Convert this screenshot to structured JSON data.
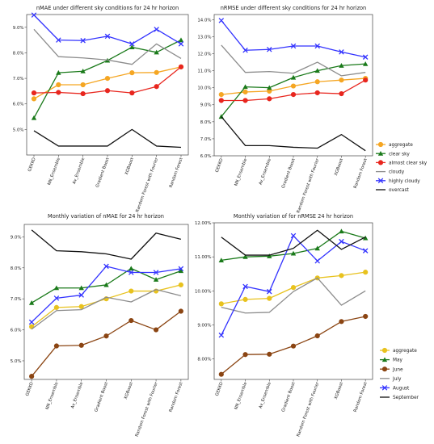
{
  "chart_data": [
    {
      "type": "line",
      "title": "nMAE under different sky conditions for 24 hr horizon",
      "categories": [
        "GEKKO",
        "NN_Ensemble",
        "Av_Ensemble",
        "Gradient Boost",
        "XGBoost",
        "Random Forest with Fourier",
        "Random Forest"
      ],
      "ylim": [
        4.0,
        9.5
      ],
      "yticks": [
        5.0,
        6.0,
        7.0,
        8.0,
        9.0
      ],
      "ytick_labels": [
        "5.0%",
        "6.0%",
        "7.0%",
        "8.0%",
        "9.0%"
      ],
      "legend_position": "right",
      "series": [
        {
          "name": "aggregate",
          "color": "#f5a623",
          "marker": "circle",
          "values": [
            6.2,
            6.75,
            6.75,
            7.0,
            7.22,
            7.23,
            7.45
          ]
        },
        {
          "name": "clear sky",
          "color": "#1a7a1a",
          "marker": "triangle",
          "values": [
            5.45,
            7.22,
            7.28,
            7.7,
            8.22,
            8.02,
            8.5
          ]
        },
        {
          "name": "almost clear sky",
          "color": "#e8261e",
          "marker": "circle",
          "values": [
            6.43,
            6.45,
            6.4,
            6.52,
            6.43,
            6.68,
            7.45
          ]
        },
        {
          "name": "cloudy",
          "color": "#8c8c8c",
          "marker": "none",
          "values": [
            8.92,
            7.85,
            7.8,
            7.72,
            7.55,
            8.35,
            7.78
          ]
        },
        {
          "name": "highly cloudy",
          "color": "#3333ff",
          "marker": "x",
          "values": [
            9.48,
            8.5,
            8.48,
            8.65,
            8.35,
            8.92,
            8.35
          ]
        },
        {
          "name": "overcast",
          "color": "#111111",
          "marker": "none",
          "values": [
            4.95,
            4.35,
            4.35,
            4.35,
            5.0,
            4.35,
            4.3
          ]
        }
      ]
    },
    {
      "type": "line",
      "title": "nRMSE under different sky conditions for 24 hr horizon",
      "categories": [
        "GEKKO",
        "NN_Ensemble",
        "Av_Ensemble",
        "Gradient Boost",
        "Random Forest with Fourier",
        "XGBoost",
        "Random Forest"
      ],
      "ylim": [
        6.0,
        14.3
      ],
      "yticks": [
        6.0,
        7.0,
        8.0,
        9.0,
        10.0,
        11.0,
        12.0,
        13.0,
        14.0
      ],
      "ytick_labels": [
        "6.0%",
        "7.0%",
        "8.0%",
        "9.0%",
        "10.0%",
        "11.0%",
        "12.0%",
        "13.0%",
        "14.0%"
      ],
      "legend_position": "right",
      "series": [
        {
          "name": "aggregate",
          "color": "#f5a623",
          "marker": "circle",
          "values": [
            9.6,
            9.75,
            9.8,
            10.1,
            10.35,
            10.45,
            10.55
          ]
        },
        {
          "name": "clear sky",
          "color": "#1a7a1a",
          "marker": "triangle",
          "values": [
            8.3,
            10.05,
            10.0,
            10.6,
            11.0,
            11.3,
            11.4
          ]
        },
        {
          "name": "almost clear sky",
          "color": "#e8261e",
          "marker": "circle",
          "values": [
            9.25,
            9.25,
            9.35,
            9.6,
            9.7,
            9.65,
            10.45
          ]
        },
        {
          "name": "cloudy",
          "color": "#8c8c8c",
          "marker": "none",
          "values": [
            12.5,
            10.9,
            10.95,
            10.85,
            11.5,
            10.7,
            10.9
          ]
        },
        {
          "name": "highly cloudy",
          "color": "#3333ff",
          "marker": "x",
          "values": [
            13.95,
            12.2,
            12.25,
            12.45,
            12.45,
            12.1,
            11.8
          ]
        },
        {
          "name": "overcast",
          "color": "#111111",
          "marker": "none",
          "values": [
            8.3,
            6.6,
            6.6,
            6.5,
            6.45,
            7.25,
            6.3
          ]
        }
      ]
    },
    {
      "type": "line",
      "title": "Monthly variation of nMAE for 24 hr horizon",
      "categories": [
        "GEKKO",
        "NN_Ensemble",
        "Av_Ensemble",
        "Gradient Boost",
        "XGBoost",
        "Random Forest with Fourier",
        "Random Forest"
      ],
      "ylim": [
        4.4,
        9.4
      ],
      "yticks": [
        5.0,
        6.0,
        7.0,
        8.0,
        9.0
      ],
      "ytick_labels": [
        "5.0%",
        "6.0%",
        "7.0%",
        "8.0%",
        "9.0%"
      ],
      "legend_position": "right",
      "series": [
        {
          "name": "aggregate",
          "color": "#e8c21e",
          "marker": "circle",
          "values": [
            6.1,
            6.72,
            6.75,
            7.0,
            7.25,
            7.25,
            7.45
          ]
        },
        {
          "name": "May",
          "color": "#1a7a1a",
          "marker": "triangle",
          "values": [
            6.87,
            7.35,
            7.35,
            7.45,
            7.98,
            7.62,
            7.9
          ]
        },
        {
          "name": "June",
          "color": "#8b4513",
          "marker": "circle",
          "values": [
            4.5,
            5.48,
            5.5,
            5.8,
            6.3,
            6.0,
            6.6
          ]
        },
        {
          "name": "July",
          "color": "#8c8c8c",
          "marker": "none",
          "values": [
            6.02,
            6.62,
            6.65,
            7.05,
            6.9,
            7.3,
            7.1
          ]
        },
        {
          "name": "August",
          "color": "#3333ff",
          "marker": "x",
          "values": [
            6.25,
            7.02,
            7.12,
            8.05,
            7.85,
            7.85,
            7.97
          ]
        },
        {
          "name": "September",
          "color": "#111111",
          "marker": "none",
          "values": [
            9.22,
            8.55,
            8.52,
            8.45,
            8.28,
            9.12,
            8.92
          ]
        }
      ]
    },
    {
      "type": "line",
      "title": "Monthly variation of for nRMSE 24 hr horizon",
      "categories": [
        "GEKKO",
        "NN_Ensemble",
        "Av_Ensemble",
        "Gradient Boost",
        "Random Forest with Fourier",
        "XGBoost",
        "Random Forest"
      ],
      "ylim": [
        7.4,
        12.0
      ],
      "yticks": [
        8.0,
        9.0,
        10.0,
        11.0,
        12.0
      ],
      "ytick_labels": [
        "8.00%",
        "9.00%",
        "10.00%",
        "11.00%",
        "12.00%"
      ],
      "legend_position": "right",
      "series": [
        {
          "name": "aggregate",
          "color": "#e8c21e",
          "marker": "circle",
          "values": [
            9.62,
            9.75,
            9.78,
            10.1,
            10.38,
            10.45,
            10.55
          ]
        },
        {
          "name": "May",
          "color": "#1a7a1a",
          "marker": "triangle",
          "values": [
            10.9,
            11.0,
            11.02,
            11.1,
            11.25,
            11.75,
            11.55
          ]
        },
        {
          "name": "June",
          "color": "#8b4513",
          "marker": "circle",
          "values": [
            7.55,
            8.13,
            8.14,
            8.38,
            8.68,
            9.1,
            9.25
          ]
        },
        {
          "name": "July",
          "color": "#8c8c8c",
          "marker": "none",
          "values": [
            9.52,
            9.35,
            9.37,
            9.98,
            10.38,
            9.58,
            10.0
          ]
        },
        {
          "name": "August",
          "color": "#3333ff",
          "marker": "x",
          "values": [
            8.7,
            10.13,
            9.98,
            11.62,
            10.88,
            11.45,
            11.18
          ]
        },
        {
          "name": "September",
          "color": "#111111",
          "marker": "none",
          "values": [
            11.58,
            11.05,
            11.05,
            11.25,
            11.78,
            11.22,
            11.58
          ]
        }
      ]
    }
  ]
}
